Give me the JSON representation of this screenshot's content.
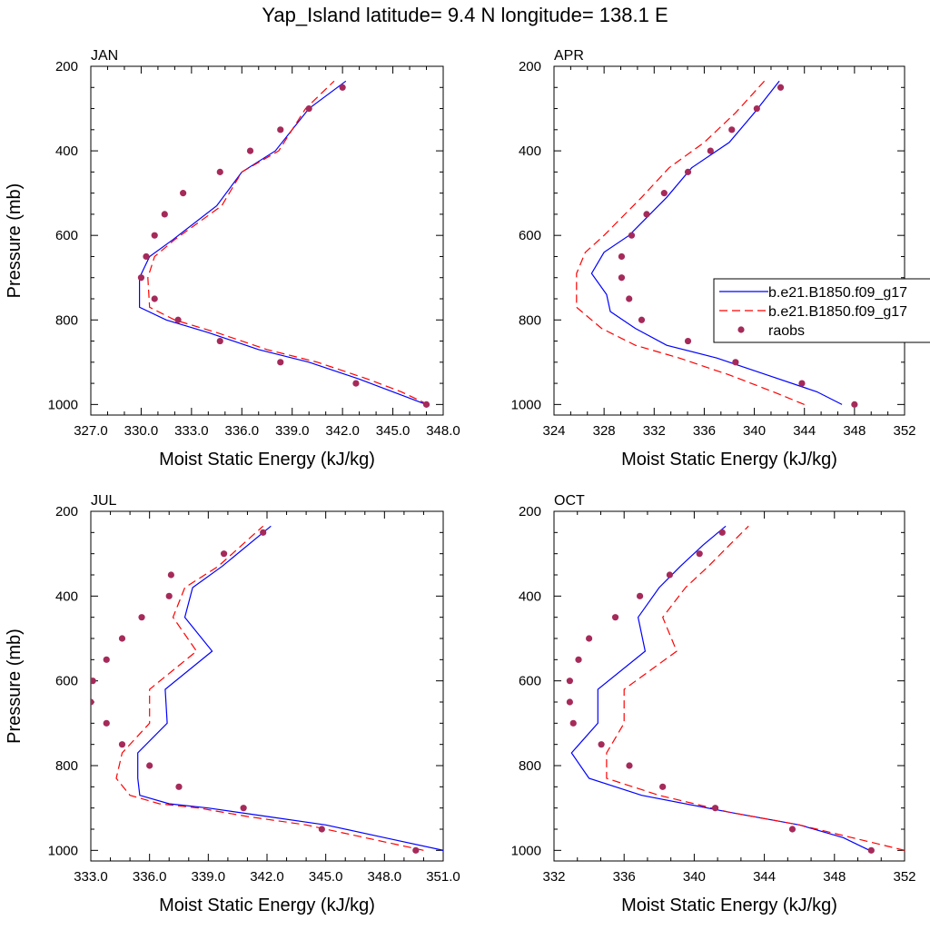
{
  "title": "Yap_Island  latitude= 9.4 N longitude= 138.1 E",
  "legend": {
    "entries": [
      {
        "label": "b.e21.B1850.f09_g17",
        "color": "#0000ff",
        "dash": "solid"
      },
      {
        "label": "b.e21.B1850.f09_g17",
        "color": "#ff0000",
        "dash": "dashed"
      },
      {
        "label": "raobs",
        "color": "#a52a5a",
        "marker": "dot"
      }
    ]
  },
  "chart_data": [
    {
      "type": "line",
      "panel": "JAN",
      "xlabel": "Moist Static Energy (kJ/kg)",
      "ylabel": "Pressure (mb)",
      "xlim": [
        327,
        348
      ],
      "ylim": [
        1025,
        200
      ],
      "xticks": [
        "327.0",
        "330.0",
        "333.0",
        "336.0",
        "339.0",
        "342.0",
        "345.0",
        "348.0"
      ],
      "yticks": [
        "200",
        "400",
        "600",
        "800",
        "1000"
      ],
      "series": [
        {
          "style": "solid",
          "color": "#0000ff",
          "x": [
            347.0,
            345.0,
            343.0,
            340.0,
            337.0,
            334.0,
            331.5,
            329.9,
            329.9,
            330.5,
            331.9,
            334.5,
            336.0,
            338.0,
            340.0,
            342.2
          ],
          "y": [
            1000,
            970,
            940,
            900,
            870,
            830,
            800,
            770,
            700,
            650,
            610,
            530,
            450,
            400,
            300,
            235
          ]
        },
        {
          "style": "dashed",
          "color": "#ff0000",
          "x": [
            347.1,
            345.5,
            343.5,
            340.5,
            337.5,
            334.5,
            332.0,
            330.5,
            330.4,
            330.8,
            332.0,
            334.8,
            336.0,
            338.2,
            339.8,
            341.5
          ],
          "y": [
            1000,
            970,
            940,
            900,
            870,
            830,
            800,
            770,
            700,
            650,
            610,
            530,
            450,
            400,
            300,
            235
          ]
        }
      ],
      "raobs": {
        "x": [
          347.0,
          342.8,
          338.3,
          334.7,
          332.2,
          330.8,
          330.0,
          330.3,
          330.8,
          331.4,
          332.5,
          334.7,
          336.5,
          338.3,
          340.0,
          342.0
        ],
        "y": [
          1000,
          950,
          900,
          850,
          800,
          750,
          700,
          650,
          600,
          550,
          500,
          450,
          400,
          350,
          300,
          250
        ]
      }
    },
    {
      "type": "line",
      "panel": "APR",
      "xlabel": "Moist Static Energy (kJ/kg)",
      "ylabel": "",
      "xlim": [
        324,
        352
      ],
      "ylim": [
        1025,
        200
      ],
      "xticks": [
        "324",
        "328",
        "332",
        "336",
        "340",
        "344",
        "348",
        "352"
      ],
      "yticks": [
        "200",
        "400",
        "600",
        "800",
        "1000"
      ],
      "series": [
        {
          "style": "solid",
          "color": "#0000ff",
          "x": [
            347.0,
            345.0,
            341.0,
            337.0,
            333.0,
            330.5,
            328.5,
            328.2,
            327.0,
            328.0,
            330.0,
            333.0,
            335.0,
            338.0,
            340.0,
            342.0
          ],
          "y": [
            1000,
            970,
            930,
            890,
            860,
            820,
            780,
            740,
            690,
            640,
            600,
            510,
            440,
            380,
            310,
            235
          ]
        },
        {
          "style": "dashed",
          "color": "#ff0000",
          "x": [
            344.0,
            341.5,
            338.0,
            334.0,
            330.5,
            327.8,
            325.8,
            325.8,
            325.8,
            326.5,
            328.0,
            331.0,
            333.2,
            336.0,
            338.5,
            340.8
          ],
          "y": [
            1000,
            970,
            930,
            890,
            860,
            820,
            770,
            740,
            690,
            640,
            600,
            510,
            440,
            380,
            310,
            235
          ]
        }
      ],
      "raobs": {
        "x": [
          348.0,
          343.8,
          338.5,
          334.7,
          331.0,
          330.0,
          329.4,
          329.4,
          330.2,
          331.4,
          332.8,
          334.7,
          336.5,
          338.2,
          340.2,
          342.1
        ],
        "y": [
          1000,
          950,
          900,
          850,
          800,
          750,
          700,
          650,
          600,
          550,
          500,
          450,
          400,
          350,
          300,
          250
        ]
      }
    },
    {
      "type": "line",
      "panel": "JUL",
      "xlabel": "Moist Static Energy (kJ/kg)",
      "ylabel": "Pressure (mb)",
      "xlim": [
        333,
        351
      ],
      "ylim": [
        1025,
        200
      ],
      "xticks": [
        "333.0",
        "336.0",
        "339.0",
        "342.0",
        "345.0",
        "348.0",
        "351.0"
      ],
      "yticks": [
        "200",
        "400",
        "600",
        "800",
        "1000"
      ],
      "series": [
        {
          "style": "solid",
          "color": "#0000ff",
          "x": [
            351.0,
            348.0,
            345.0,
            342.0,
            339.0,
            337.0,
            335.5,
            335.4,
            335.4,
            336.9,
            336.8,
            339.2,
            337.8,
            338.2,
            339.7,
            342.2
          ],
          "y": [
            1000,
            970,
            940,
            920,
            900,
            890,
            870,
            830,
            770,
            700,
            620,
            530,
            450,
            380,
            330,
            235
          ]
        },
        {
          "style": "dashed",
          "color": "#ff0000",
          "x": [
            350.0,
            347.0,
            344.0,
            341.0,
            338.5,
            336.5,
            335.0,
            334.3,
            334.6,
            336.0,
            336.0,
            338.4,
            337.2,
            337.8,
            339.5,
            341.8
          ],
          "y": [
            1000,
            970,
            940,
            920,
            900,
            890,
            870,
            830,
            770,
            700,
            620,
            530,
            450,
            380,
            330,
            235
          ]
        }
      ],
      "raobs": {
        "x": [
          349.6,
          344.8,
          340.8,
          337.5,
          336.0,
          334.6,
          333.8,
          333.0,
          333.1,
          333.8,
          334.6,
          335.6,
          337.0,
          337.1,
          339.8,
          341.8
        ],
        "y": [
          1000,
          950,
          900,
          850,
          800,
          750,
          700,
          650,
          600,
          550,
          500,
          450,
          400,
          350,
          300,
          250
        ]
      }
    },
    {
      "type": "line",
      "panel": "OCT",
      "xlabel": "Moist Static Energy (kJ/kg)",
      "ylabel": "",
      "xlim": [
        332,
        352
      ],
      "ylim": [
        1025,
        200
      ],
      "xticks": [
        "332",
        "336",
        "340",
        "344",
        "348",
        "352"
      ],
      "yticks": [
        "200",
        "400",
        "600",
        "800",
        "1000"
      ],
      "series": [
        {
          "style": "solid",
          "color": "#0000ff",
          "x": [
            350.0,
            348.5,
            346.0,
            342.0,
            337.0,
            334.0,
            333.0,
            334.5,
            334.5,
            337.2,
            336.8,
            338.0,
            339.2,
            340.5,
            341.8
          ],
          "y": [
            1000,
            970,
            940,
            910,
            870,
            830,
            770,
            700,
            620,
            530,
            450,
            380,
            330,
            280,
            235
          ]
        },
        {
          "style": "dashed",
          "color": "#ff0000",
          "x": [
            352.0,
            349.0,
            346.0,
            342.0,
            338.0,
            335.0,
            335.0,
            336.0,
            336.0,
            339.0,
            338.2,
            339.5,
            340.8,
            342.0,
            343.1
          ],
          "y": [
            1000,
            970,
            940,
            910,
            870,
            830,
            770,
            700,
            620,
            530,
            450,
            380,
            330,
            280,
            235
          ]
        }
      ],
      "raobs": {
        "x": [
          350.1,
          345.6,
          341.2,
          338.2,
          336.3,
          334.7,
          333.1,
          332.9,
          332.9,
          333.4,
          334.0,
          335.5,
          336.9,
          338.6,
          340.3,
          341.6
        ],
        "y": [
          1000,
          950,
          900,
          850,
          800,
          750,
          700,
          650,
          600,
          550,
          500,
          450,
          400,
          350,
          300,
          250
        ]
      }
    }
  ]
}
